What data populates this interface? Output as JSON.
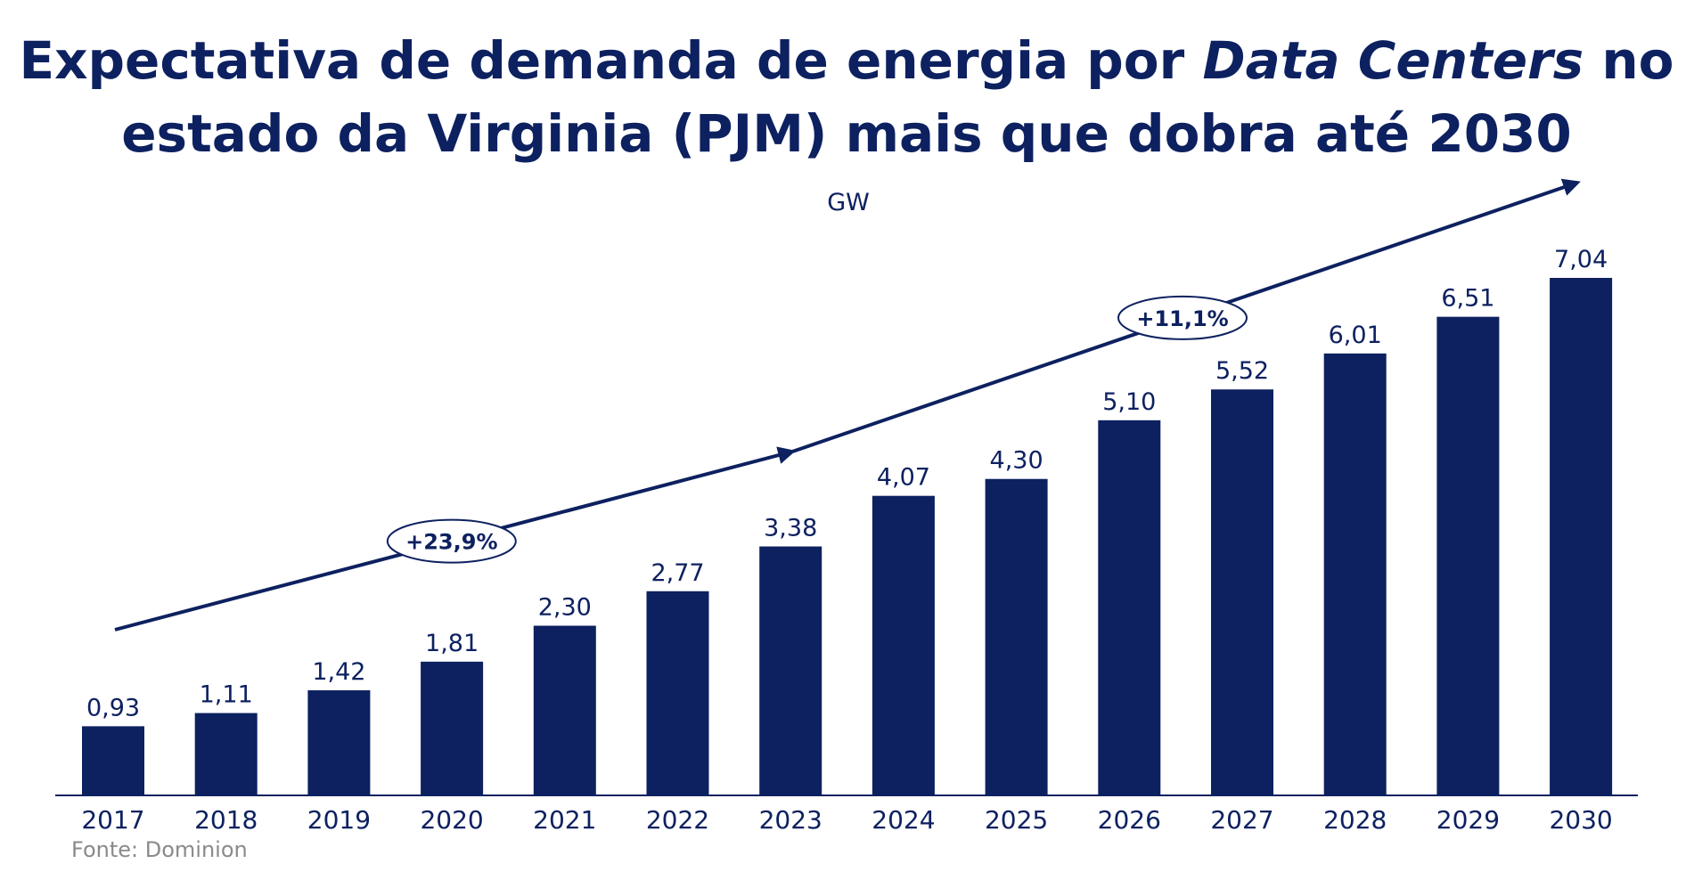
{
  "title": {
    "line1_pre": "Expectativa de demanda de energia por ",
    "line1_italic": "Data Centers",
    "line1_post": " no",
    "line2": "estado da Virginia (PJM) mais que dobra até 2030"
  },
  "unit": "GW",
  "source": "Fonte: Dominion",
  "colors": {
    "bar": "#0d2160",
    "text": "#0d2160",
    "source": "#8a8a8a"
  },
  "chart_data": {
    "type": "bar",
    "categories": [
      "2017",
      "2018",
      "2019",
      "2020",
      "2021",
      "2022",
      "2023",
      "2024",
      "2025",
      "2026",
      "2027",
      "2028",
      "2029",
      "2030"
    ],
    "values": [
      0.93,
      1.11,
      1.42,
      1.81,
      2.3,
      2.77,
      3.38,
      4.07,
      4.3,
      5.1,
      5.52,
      6.01,
      6.51,
      7.04
    ],
    "value_labels": [
      "0,93",
      "1,11",
      "1,42",
      "1,81",
      "2,30",
      "2,77",
      "3,38",
      "4,07",
      "4,30",
      "5,10",
      "5,52",
      "6,01",
      "6,51",
      "7,04"
    ],
    "ylabel": "GW",
    "ylim": [
      0,
      7.04
    ],
    "grid": false,
    "legend": "none",
    "annotations": [
      {
        "text": "+23,9%",
        "from": "2017",
        "to": "2023"
      },
      {
        "text": "+11,1%",
        "from": "2023",
        "to": "2030"
      }
    ]
  }
}
